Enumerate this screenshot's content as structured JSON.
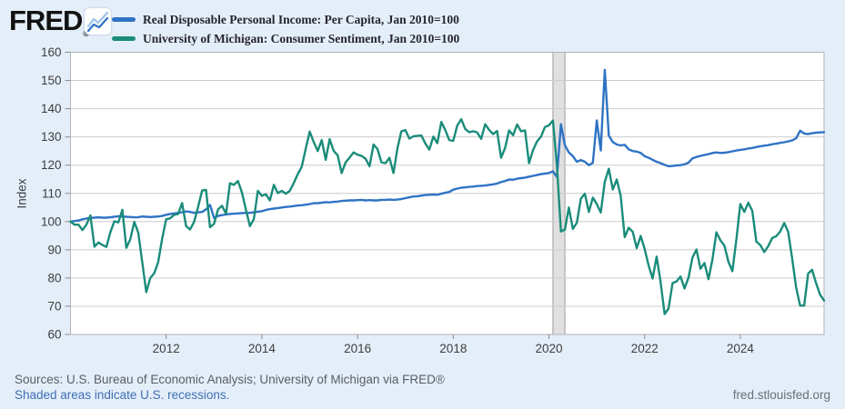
{
  "page": {
    "background": "#e4eef9"
  },
  "header": {
    "logo_text": "FRED",
    "logo_registered": "®",
    "logo_chart_icon": "line-chart-zigzag",
    "legend": [
      {
        "label": "Real Disposable Personal Income: Per Capita, Jan 2010=100",
        "color": "#2f73c4"
      },
      {
        "label": "University of Michigan: Consumer Sentiment, Jan 2010=100",
        "color": "#1a8c7a"
      }
    ]
  },
  "footer": {
    "sources": "Sources: U.S. Bureau of Economic Analysis; University of Michigan via FRED®",
    "recession_note": "Shaded areas indicate U.S. recessions.",
    "site": "fred.stlouisfed.org"
  },
  "chart_data": {
    "type": "line",
    "title": "",
    "xlabel": "",
    "ylabel": "Index",
    "ylim": [
      60,
      160
    ],
    "yticks": [
      60,
      70,
      80,
      90,
      100,
      110,
      120,
      130,
      140,
      150,
      160
    ],
    "xticks": [
      2012,
      2014,
      2016,
      2018,
      2020,
      2022,
      2024
    ],
    "x_start": "2010-01",
    "x_end": "2025-10",
    "x_interval": "monthly",
    "grid": true,
    "legend_position": "top-left",
    "grid_color": "#cccccc",
    "plot_background": "#ffffff",
    "border_color": "#b3b3b3",
    "recession_color": "#e0e0e0",
    "recessions": [
      {
        "start": "2020-02",
        "end": "2020-04"
      }
    ],
    "series": [
      {
        "name": "Real Disposable Personal Income: Per Capita, Jan 2010=100",
        "color": "#2f73c4",
        "values": [
          100.0,
          100.2,
          100.4,
          100.8,
          101.1,
          101.3,
          101.4,
          101.5,
          101.4,
          101.4,
          101.5,
          101.7,
          101.9,
          101.8,
          101.7,
          101.6,
          101.5,
          101.5,
          101.8,
          101.7,
          101.6,
          101.7,
          101.8,
          102.0,
          102.4,
          102.7,
          102.9,
          103.1,
          103.3,
          103.6,
          103.4,
          103.1,
          103.3,
          103.4,
          104.3,
          105.9,
          101.3,
          102.0,
          102.3,
          102.5,
          102.7,
          102.8,
          102.9,
          103.0,
          103.1,
          103.1,
          103.3,
          103.5,
          103.7,
          104.1,
          104.4,
          104.6,
          104.8,
          105.0,
          105.2,
          105.3,
          105.5,
          105.7,
          105.8,
          106.0,
          106.2,
          106.5,
          106.5,
          106.7,
          106.9,
          106.8,
          107.0,
          107.1,
          107.3,
          107.4,
          107.5,
          107.5,
          107.6,
          107.7,
          107.5,
          107.6,
          107.5,
          107.5,
          107.7,
          107.7,
          107.8,
          107.7,
          107.8,
          108.0,
          108.3,
          108.6,
          108.9,
          109.0,
          109.2,
          109.4,
          109.5,
          109.6,
          109.5,
          109.9,
          110.2,
          110.5,
          111.3,
          111.7,
          112.0,
          112.1,
          112.3,
          112.4,
          112.6,
          112.7,
          112.8,
          113.0,
          113.2,
          113.5,
          114.0,
          114.4,
          114.9,
          114.8,
          115.2,
          115.4,
          115.6,
          115.9,
          116.2,
          116.5,
          116.8,
          117.0,
          117.2,
          117.8,
          115.8,
          134.5,
          127.0,
          124.5,
          123.2,
          121.2,
          121.8,
          121.2,
          120.0,
          120.8,
          135.8,
          125.2,
          153.8,
          130.5,
          128.2,
          127.3,
          127.0,
          127.2,
          125.6,
          125.0,
          124.8,
          124.3,
          123.2,
          122.6,
          121.9,
          121.2,
          120.7,
          120.1,
          119.6,
          119.7,
          119.9,
          120.0,
          120.3,
          120.9,
          122.4,
          122.9,
          123.3,
          123.6,
          123.9,
          124.3,
          124.5,
          124.3,
          124.4,
          124.6,
          124.9,
          125.2,
          125.4,
          125.6,
          125.9,
          126.1,
          126.4,
          126.7,
          126.9,
          127.1,
          127.4,
          127.6,
          127.9,
          128.1,
          128.4,
          128.8,
          129.5,
          132.2,
          131.2,
          131.0,
          131.3,
          131.5,
          131.6,
          131.7
        ]
      },
      {
        "name": "University of Michigan: Consumer Sentiment, Jan 2010=100",
        "color": "#1a8c7a",
        "values": [
          100.0,
          98.9,
          98.9,
          97.0,
          98.9,
          102.2,
          91.1,
          92.6,
          91.7,
          91.0,
          96.2,
          100.1,
          99.7,
          104.2,
          90.7,
          93.8,
          99.9,
          96.1,
          85.6,
          75.0,
          80.0,
          81.7,
          85.6,
          94.0,
          100.8,
          101.2,
          102.4,
          102.7,
          106.6,
          98.4,
          97.2,
          99.9,
          105.2,
          111.0,
          111.2,
          98.0,
          99.2,
          104.3,
          105.6,
          102.7,
          113.6,
          113.0,
          114.4,
          110.3,
          104.2,
          98.4,
          100.9,
          110.9,
          109.1,
          109.7,
          107.5,
          113.0,
          110.1,
          110.9,
          109.9,
          110.9,
          113.7,
          116.8,
          119.4,
          125.8,
          131.9,
          128.2,
          125.0,
          128.9,
          121.9,
          129.2,
          125.1,
          123.5,
          117.2,
          121.0,
          122.7,
          124.5,
          123.7,
          123.3,
          122.3,
          119.6,
          127.3,
          125.7,
          121.0,
          120.7,
          122.6,
          117.2,
          126.1,
          132.0,
          132.4,
          129.4,
          130.2,
          130.4,
          130.5,
          127.7,
          125.5,
          130.1,
          127.8,
          135.3,
          132.4,
          128.9,
          128.6,
          134.0,
          136.3,
          132.8,
          131.7,
          132.0,
          131.6,
          129.3,
          134.5,
          132.5,
          131.0,
          132.1,
          122.6,
          126.1,
          132.3,
          130.6,
          134.4,
          132.0,
          132.3,
          120.7,
          125.3,
          128.4,
          130.1,
          133.5,
          134.1,
          135.8,
          119.8,
          96.5,
          97.2,
          105.0,
          97.4,
          99.6,
          108.1,
          109.9,
          103.4,
          108.5,
          106.2,
          103.2,
          114.1,
          118.7,
          111.4,
          114.9,
          109.1,
          94.5,
          97.8,
          96.4,
          90.6,
          94.9,
          90.3,
          84.4,
          79.8,
          87.6,
          78.5,
          67.2,
          69.2,
          78.2,
          78.8,
          80.5,
          76.3,
          80.2,
          87.2,
          90.1,
          83.3,
          85.3,
          79.6,
          86.6,
          96.2,
          93.4,
          91.5,
          85.8,
          82.4,
          93.7,
          106.2,
          103.4,
          106.7,
          103.8,
          92.9,
          91.7,
          89.2,
          91.3,
          94.2,
          94.8,
          96.5,
          99.5,
          96.4,
          87.0,
          76.6,
          70.2,
          70.2,
          81.6,
          82.9,
          78.2,
          74.1,
          72.0
        ]
      }
    ]
  }
}
